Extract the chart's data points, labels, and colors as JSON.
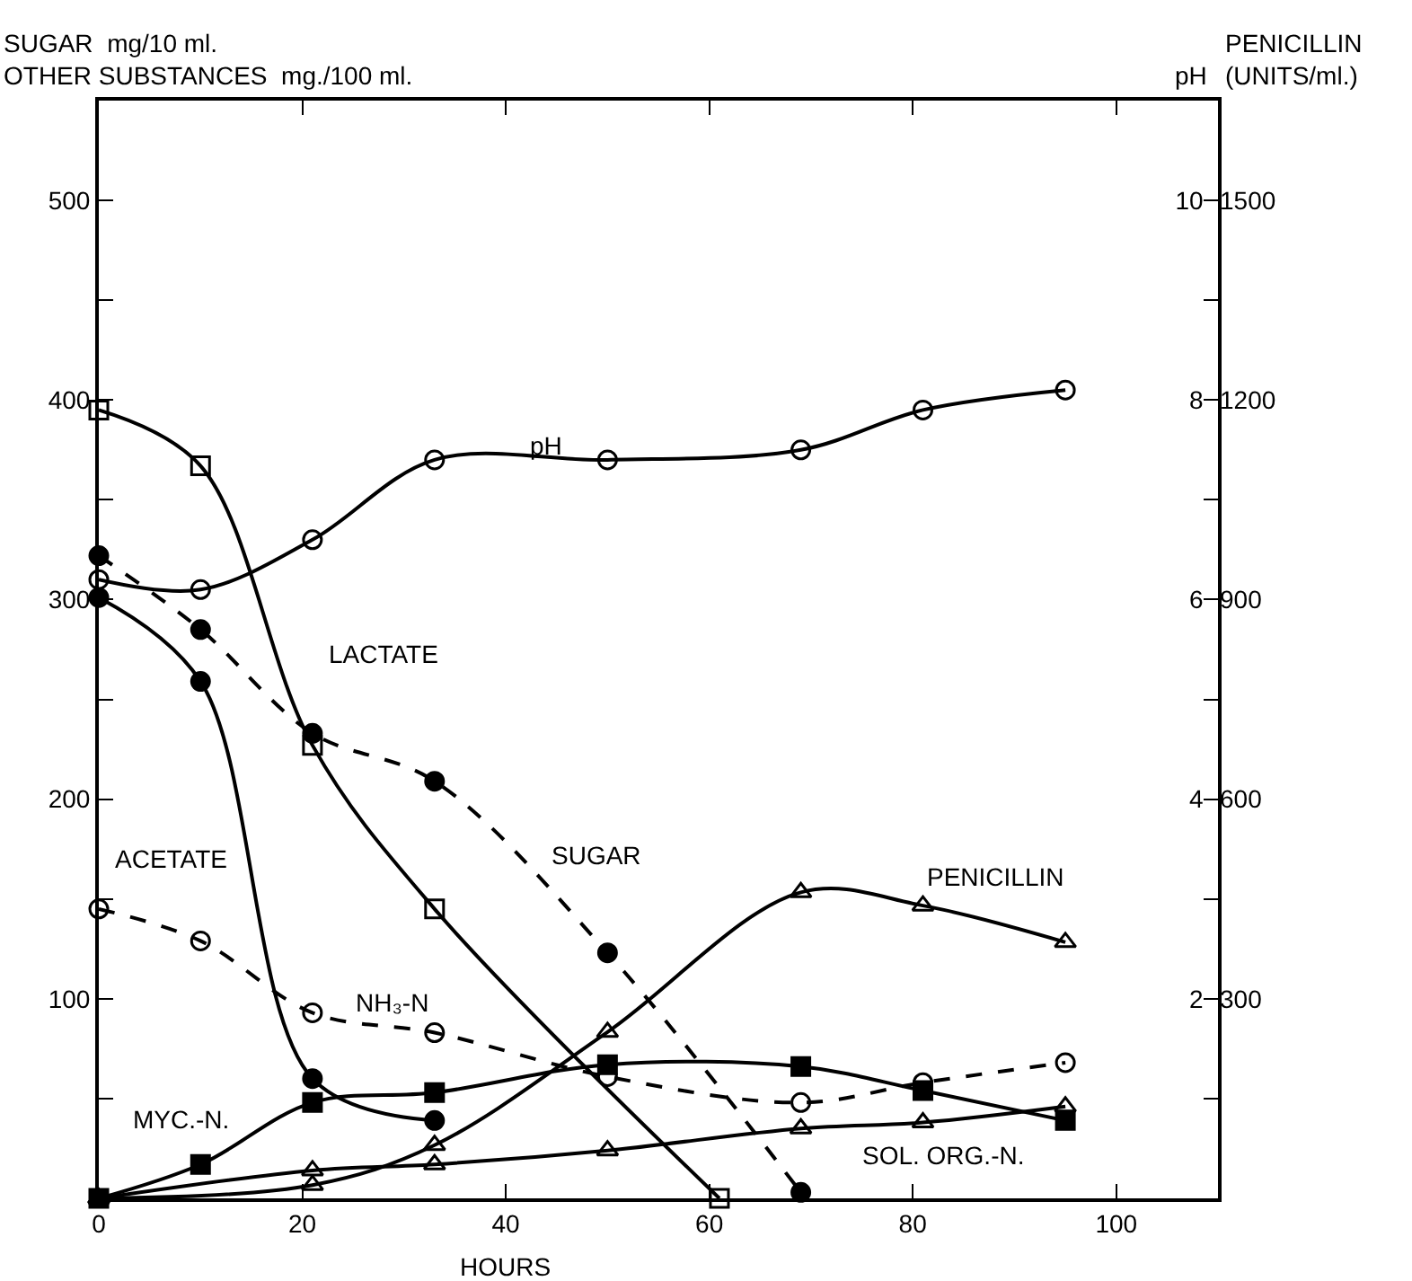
{
  "chart_data": {
    "type": "line",
    "xlabel": "HOURS",
    "ylabel": "SUGAR  mg/10 ml.\nOTHER SUBSTANCES  mg./100 ml.",
    "y2label": "pH",
    "y3label": "PENICILLIN\n(UNITS/ml.)",
    "xlim": [
      0,
      110
    ],
    "xticks": [
      0,
      20,
      40,
      60,
      80,
      100
    ],
    "ylim": [
      0,
      550
    ],
    "yticks": [
      {
        "value": 50,
        "label": null
      },
      100,
      {
        "value": 150,
        "label": null
      },
      200,
      {
        "value": 250,
        "label": null
      },
      300,
      {
        "value": 350,
        "label": null
      },
      400,
      {
        "value": 450,
        "label": null
      },
      500
    ],
    "y2lim": [
      0,
      11
    ],
    "y2ticks": [
      {
        "value": 1,
        "label": null
      },
      2,
      {
        "value": 3,
        "label": null
      },
      4,
      {
        "value": 5,
        "label": null
      },
      6,
      {
        "value": 7,
        "label": null
      },
      8,
      {
        "value": 9,
        "label": null
      },
      10
    ],
    "y3lim": [
      0,
      1650
    ],
    "y3ticks": [
      300,
      600,
      900,
      1200,
      1500
    ],
    "grid": false,
    "legend": false,
    "series": [
      {
        "name": "LACTATE",
        "color": "#000000",
        "marker": "square-open",
        "line_style": "solid",
        "x": [
          0,
          10,
          21,
          33,
          61
        ],
        "values": [
          395,
          367,
          227,
          145,
          0
        ]
      },
      {
        "name": "ACETATE",
        "color": "#000000",
        "marker": "circle",
        "line_style": "solid",
        "x": [
          0,
          10,
          21,
          33
        ],
        "values": [
          301,
          259,
          60,
          39
        ]
      },
      {
        "name": "SUGAR",
        "color": "#000000",
        "marker": "circle",
        "line_style": "dashed",
        "x": [
          0,
          10,
          21,
          33,
          50,
          69
        ],
        "values": [
          322,
          285,
          233,
          209,
          123,
          3
        ]
      },
      {
        "name": "NH₃-N",
        "color": "#000000",
        "marker": "circle-open",
        "line_style": "dashed",
        "x": [
          0,
          10,
          21,
          33,
          50,
          69,
          81,
          95
        ],
        "values": [
          145,
          129,
          93,
          83,
          61,
          48,
          58,
          68
        ]
      },
      {
        "name": "MYC.-N.",
        "color": "#000000",
        "marker": "square",
        "line_style": "solid",
        "x": [
          0,
          10,
          21,
          33,
          50,
          69,
          81,
          95
        ],
        "values": [
          0,
          17,
          48,
          53,
          67,
          66,
          54,
          39
        ]
      },
      {
        "name": "SOL. ORG.-N.",
        "color": "#000000",
        "marker": "triangle-open",
        "line_style": "solid",
        "x": [
          0,
          21,
          33,
          50,
          69,
          81,
          95
        ],
        "values": [
          0,
          14,
          17,
          24,
          35,
          38,
          46
        ]
      },
      {
        "name": "PENICILLIN",
        "color": "#000000",
        "marker": "triangle-open",
        "line_style": "solid",
        "axis": "y3",
        "x": [
          0,
          21,
          33,
          50,
          69,
          81,
          95
        ],
        "values": [
          0,
          20,
          80,
          250,
          460,
          440,
          385
        ]
      },
      {
        "name": "pH",
        "color": "#000000",
        "marker": "circle-open",
        "line_style": "solid",
        "axis": "y2",
        "x": [
          0,
          10,
          21,
          33,
          50,
          69,
          81,
          95
        ],
        "values": [
          6.2,
          6.1,
          6.6,
          7.4,
          7.4,
          7.5,
          7.9,
          8.1
        ]
      }
    ]
  }
}
